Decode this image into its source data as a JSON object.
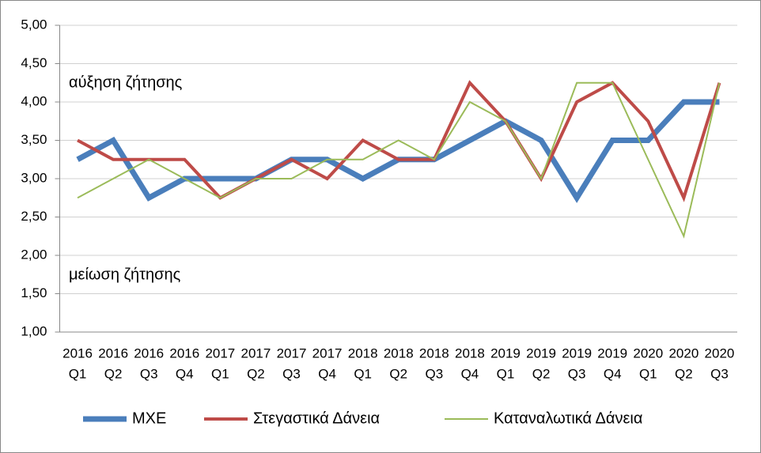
{
  "chart_data": {
    "type": "line",
    "annotations": [
      "αύξηση ζήτησης",
      "μείωση ζήτησης"
    ],
    "categories": [
      [
        "2016",
        "Q1"
      ],
      [
        "2016",
        "Q2"
      ],
      [
        "2016",
        "Q3"
      ],
      [
        "2016",
        "Q4"
      ],
      [
        "2017",
        "Q1"
      ],
      [
        "2017",
        "Q2"
      ],
      [
        "2017",
        "Q3"
      ],
      [
        "2017",
        "Q4"
      ],
      [
        "2018",
        "Q1"
      ],
      [
        "2018",
        "Q2"
      ],
      [
        "2018",
        "Q3"
      ],
      [
        "2018",
        "Q4"
      ],
      [
        "2019",
        "Q1"
      ],
      [
        "2019",
        "Q2"
      ],
      [
        "2019",
        "Q3"
      ],
      [
        "2019",
        "Q4"
      ],
      [
        "2020",
        "Q1"
      ],
      [
        "2020",
        "Q2"
      ],
      [
        "2020",
        "Q3"
      ]
    ],
    "series": [
      {
        "name": "ΜΧΕ",
        "color": "#4a7ebb",
        "values": [
          3.25,
          3.5,
          2.75,
          3.0,
          3.0,
          3.0,
          3.25,
          3.25,
          3.0,
          3.25,
          3.25,
          3.5,
          3.75,
          3.5,
          2.75,
          3.5,
          3.5,
          4.0,
          4.0
        ]
      },
      {
        "name": "Στεγαστικά Δάνεια",
        "color": "#be4b48",
        "values": [
          3.5,
          3.25,
          3.25,
          3.25,
          2.75,
          3.0,
          3.25,
          3.0,
          3.5,
          3.25,
          3.25,
          4.25,
          3.75,
          3.0,
          4.0,
          4.25,
          3.75,
          2.75,
          4.25
        ]
      },
      {
        "name": "Καταναλωτικά Δάνεια",
        "color": "#9bbb59",
        "values": [
          2.75,
          3.0,
          3.25,
          3.0,
          2.75,
          3.0,
          3.0,
          3.25,
          3.25,
          3.5,
          3.25,
          4.0,
          3.75,
          3.0,
          4.25,
          4.25,
          3.25,
          2.25,
          4.25
        ]
      }
    ],
    "ylim": [
      1,
      5
    ],
    "yticks": [
      {
        "value": 1,
        "label": "1,00"
      },
      {
        "value": 1.5,
        "label": "1,50"
      },
      {
        "value": 2,
        "label": "2,00"
      },
      {
        "value": 2.5,
        "label": "2,50"
      },
      {
        "value": 3,
        "label": "3,00"
      },
      {
        "value": 3.5,
        "label": "3,50"
      },
      {
        "value": 4,
        "label": "4,00"
      },
      {
        "value": 4.5,
        "label": "4,50"
      },
      {
        "value": 5,
        "label": "5,00"
      }
    ],
    "grid": true,
    "legend": "bottom"
  }
}
